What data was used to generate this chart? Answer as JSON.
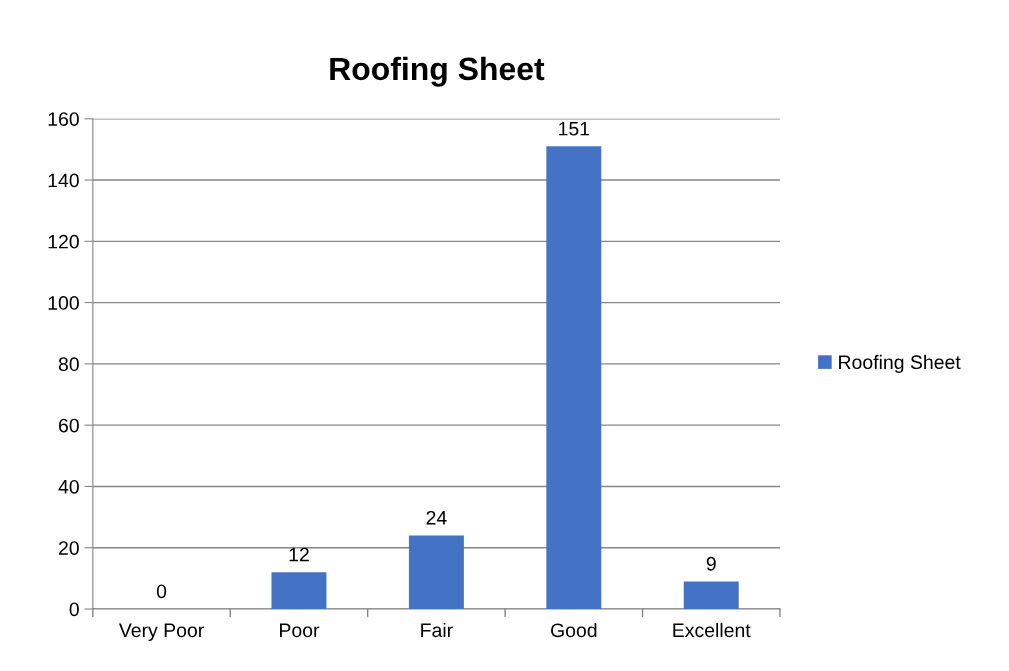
{
  "chart_data": {
    "type": "bar",
    "title": "Roofing Sheet",
    "categories": [
      "Very Poor",
      "Poor",
      "Fair",
      "Good",
      "Excellent"
    ],
    "series": [
      {
        "name": "Roofing Sheet",
        "color": "#4472c4",
        "values": [
          0,
          12,
          24,
          151,
          9
        ]
      }
    ],
    "ylim": [
      0,
      160
    ],
    "yticks": [
      0,
      20,
      40,
      60,
      80,
      100,
      120,
      140,
      160
    ],
    "grid": "y",
    "legend": "right",
    "data_labels": true
  }
}
